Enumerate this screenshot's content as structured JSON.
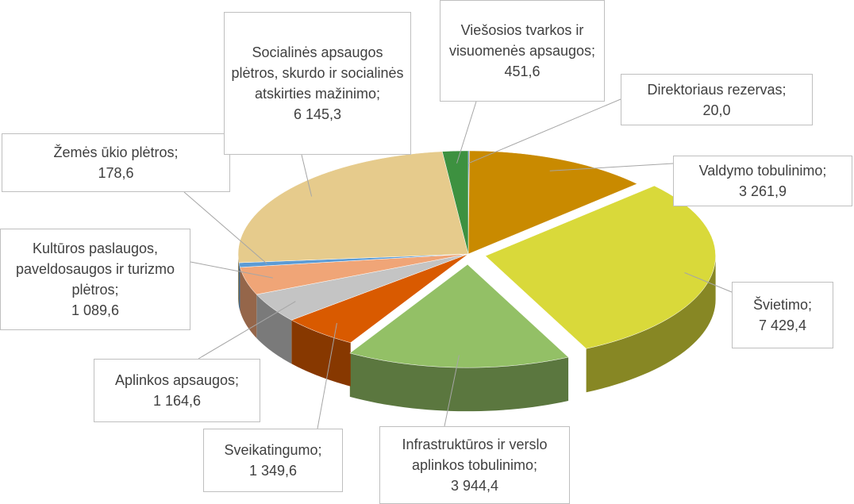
{
  "chart_data": {
    "type": "pie",
    "categories": [
      "Direktoriaus rezervas;",
      "Valdymo tobulinimo;",
      "Švietimo;",
      "Infrastruktūros ir verslo aplinkos tobulinimo;",
      "Sveikatingumo;",
      "Aplinkos apsaugos;",
      "Kultūros paslaugos, paveldosaugos ir turizmo plėtros;",
      "Žemės ūkio plėtros;",
      "Socialinės apsaugos plėtros, skurdo ir socialinės atskirties mažinimo;",
      "Viešosios tvarkos ir visuomenės apsaugos;"
    ],
    "values": [
      20.0,
      3261.9,
      7429.4,
      3944.4,
      1349.6,
      1164.6,
      1089.6,
      178.6,
      6145.3,
      451.6
    ],
    "value_labels": [
      "20,0",
      "3 261,9",
      "7 429,4",
      "3 944,4",
      "1 349,6",
      "1 164,6",
      "1 089,6",
      "178,6",
      "6 145,3",
      "451,6"
    ],
    "colors": [
      "#4472c4",
      "#c98a00",
      "#d9d93a",
      "#93c066",
      "#d95a00",
      "#c4c4c4",
      "#f0a577",
      "#5b9bd5",
      "#e6cb8c",
      "#3d9140"
    ]
  }
}
